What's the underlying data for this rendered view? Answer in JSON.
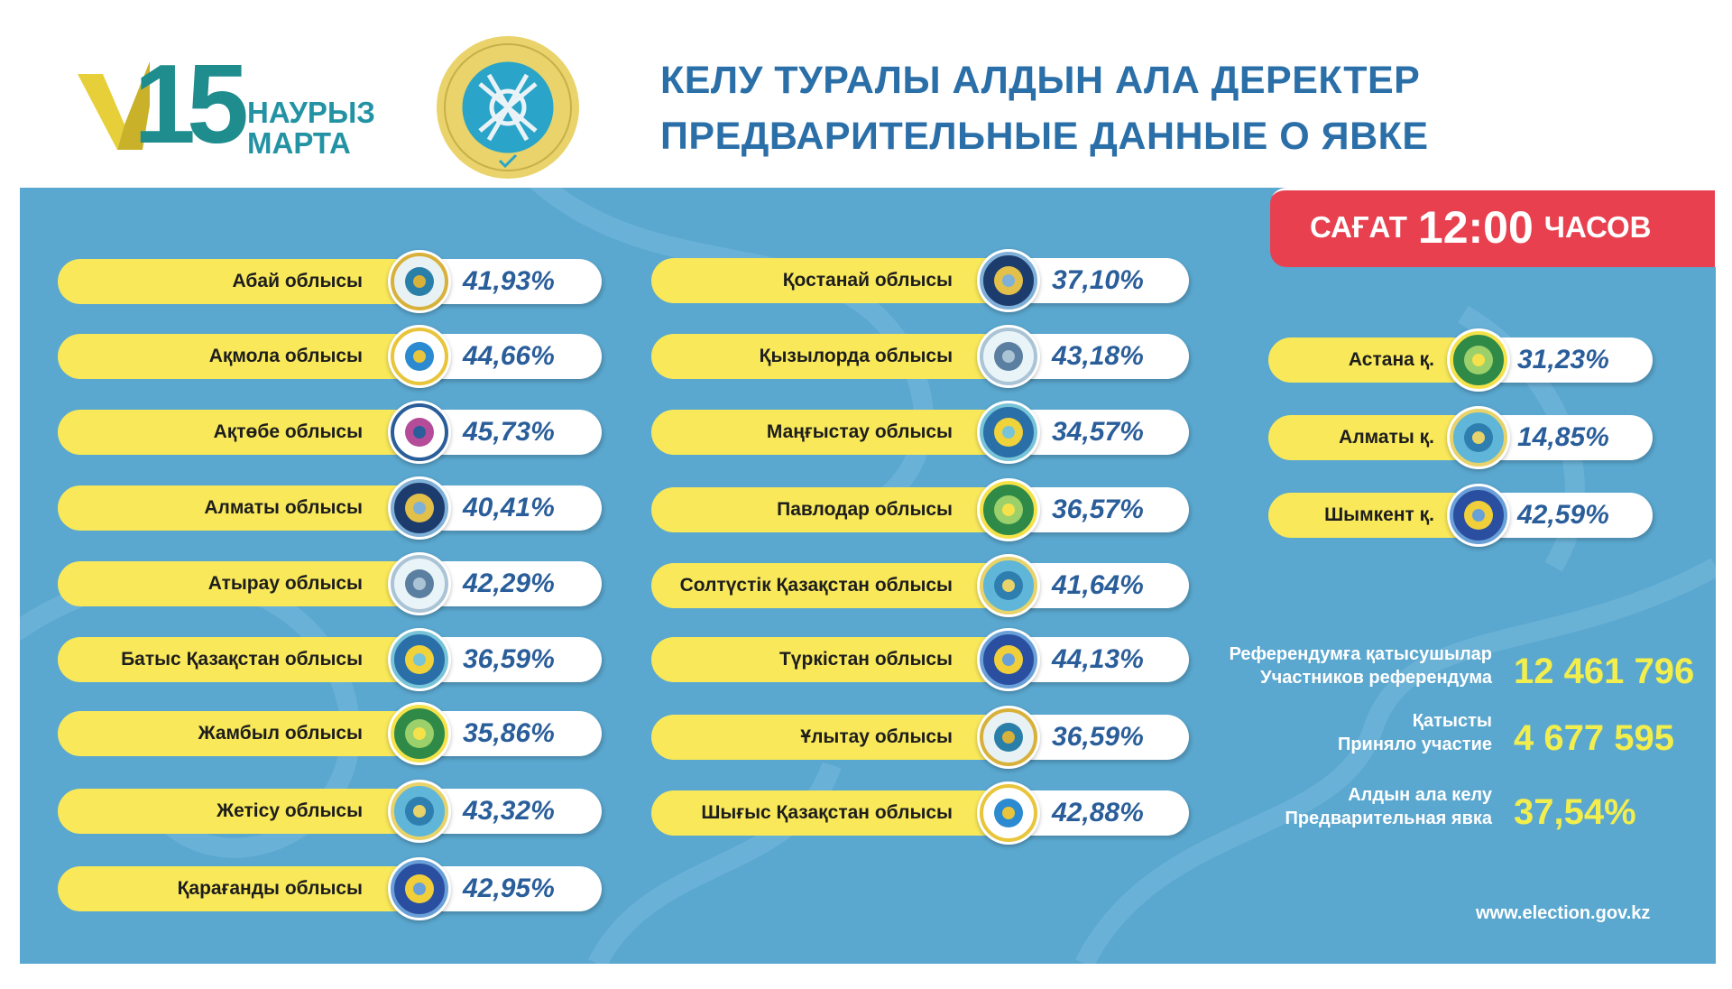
{
  "header": {
    "logo_number": "15",
    "logo_line1": "НАУРЫЗ",
    "logo_line2": "МАРТА",
    "title_kz": "КЕЛУ ТУРАЛЫ АЛДЫН АЛА ДЕРЕКТЕР",
    "title_ru": "ПРЕДВАРИТЕЛЬНЫЕ ДАННЫЕ О ЯВКЕ"
  },
  "time": {
    "prefix": "САҒАТ",
    "value": "12:00",
    "suffix": "ЧАСОВ"
  },
  "col1": [
    {
      "name": "Абай облысы",
      "pct": "41,93%",
      "icon": "abai-emblem-icon"
    },
    {
      "name": "Ақмола облысы",
      "pct": "44,66%",
      "icon": "aqmola-emblem-icon"
    },
    {
      "name": "Ақтөбе облысы",
      "pct": "45,73%",
      "icon": "aqtobe-emblem-icon"
    },
    {
      "name": "Алматы облысы",
      "pct": "40,41%",
      "icon": "almaty-region-emblem-icon"
    },
    {
      "name": "Атырау облысы",
      "pct": "42,29%",
      "icon": "atyrau-emblem-icon"
    },
    {
      "name": "Батыс Қазақстан облысы",
      "pct": "36,59%",
      "icon": "west-kz-emblem-icon"
    },
    {
      "name": "Жамбыл облысы",
      "pct": "35,86%",
      "icon": "zhambyl-emblem-icon"
    },
    {
      "name": "Жетісу облысы",
      "pct": "43,32%",
      "icon": "zhetisu-emblem-icon"
    },
    {
      "name": "Қарағанды облысы",
      "pct": "42,95%",
      "icon": "karaganda-emblem-icon"
    }
  ],
  "col2": [
    {
      "name": "Қостанай облысы",
      "pct": "37,10%",
      "icon": "kostanay-emblem-icon"
    },
    {
      "name": "Қызылорда облысы",
      "pct": "43,18%",
      "icon": "kyzylorda-emblem-icon"
    },
    {
      "name": "Маңғыстау облысы",
      "pct": "34,57%",
      "icon": "mangystau-emblem-icon"
    },
    {
      "name": "Павлодар облысы",
      "pct": "36,57%",
      "icon": "pavlodar-emblem-icon"
    },
    {
      "name": "Солтүстік Қазақстан облысы",
      "pct": "41,64%",
      "icon": "north-kz-emblem-icon"
    },
    {
      "name": "Түркістан облысы",
      "pct": "44,13%",
      "icon": "turkistan-emblem-icon"
    },
    {
      "name": "Ұлытау облысы",
      "pct": "36,59%",
      "icon": "ulytau-emblem-icon"
    },
    {
      "name": "Шығыс Қазақстан облысы",
      "pct": "42,88%",
      "icon": "east-kz-emblem-icon"
    }
  ],
  "col3": [
    {
      "name": "Астана қ.",
      "pct": "31,23%",
      "icon": "astana-emblem-icon"
    },
    {
      "name": "Алматы қ.",
      "pct": "14,85%",
      "icon": "almaty-city-emblem-icon"
    },
    {
      "name": "Шымкент қ.",
      "pct": "42,59%",
      "icon": "shymkent-emblem-icon"
    }
  ],
  "stats": {
    "participants_kz": "Референдумға қатысушылар",
    "participants_ru": "Участников референдума",
    "participants_value": "12 461 796",
    "took_part_kz": "Қатысты",
    "took_part_ru": "Приняло участие",
    "took_part_value": "4 677 595",
    "turnout_kz": "Алдын ала келу",
    "turnout_ru": "Предварительная явка",
    "turnout_value": "37,54%"
  },
  "website": "www.election.gov.kz",
  "colors": {
    "panel": "#5aa7cf",
    "bar": "#f8e85a",
    "time_box": "#e8404e",
    "pct_text": "#2a5e9a",
    "stat_value": "#f2ee4e",
    "title": "#2b6fa8"
  }
}
